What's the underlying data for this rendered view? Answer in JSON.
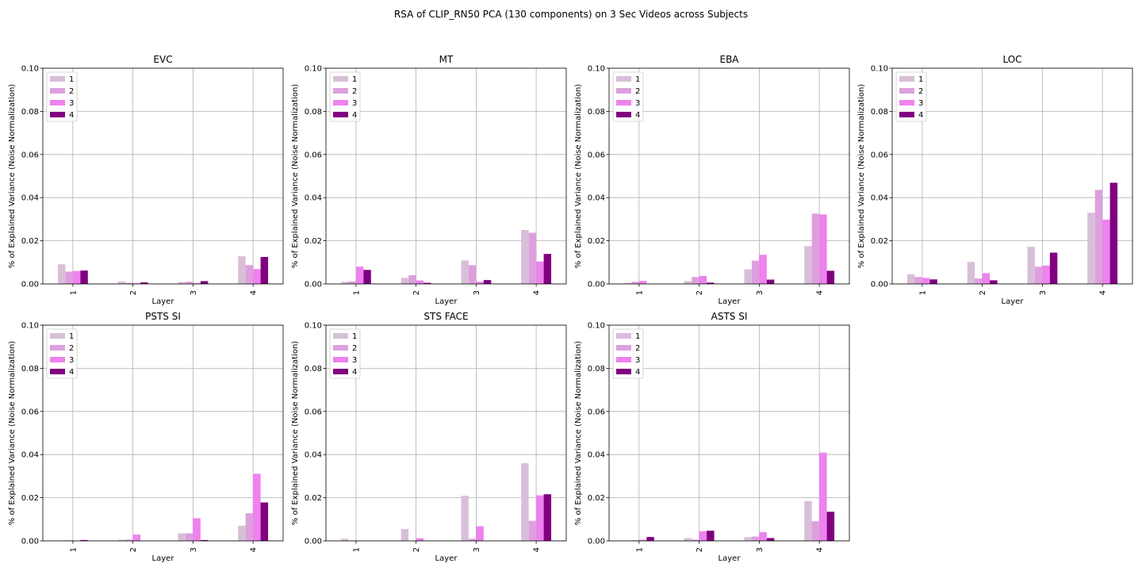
{
  "figure": {
    "title": "RSA of CLIP_RN50 PCA (130 components) on 3 Sec Videos across Subjects"
  },
  "colors": [
    "#d8bfd8",
    "#dda0dd",
    "#ee82ee",
    "#800080"
  ],
  "chart_data": [
    {
      "type": "bar",
      "title": "EVC",
      "xlabel": "Layer",
      "ylabel": "% of Explained Variance (Noise Normalization)",
      "categories": [
        "1",
        "2",
        "3",
        "4"
      ],
      "ylim": [
        0,
        0.1
      ],
      "yticks": [
        "0.00",
        "0.02",
        "0.04",
        "0.06",
        "0.08",
        "0.10"
      ],
      "grid": true,
      "legend": "top-left",
      "series": [
        {
          "name": "1",
          "values": [
            0.0091,
            0.0012,
            0.0009,
            0.0128
          ]
        },
        {
          "name": "2",
          "values": [
            0.0057,
            0.0005,
            0.001,
            0.0087
          ]
        },
        {
          "name": "3",
          "values": [
            0.006,
            0.0003,
            0.0004,
            0.0069
          ]
        },
        {
          "name": "4",
          "values": [
            0.0062,
            0.0007,
            0.0013,
            0.0125
          ]
        }
      ]
    },
    {
      "type": "bar",
      "title": "MT",
      "xlabel": "Layer",
      "ylabel": "% of Explained Variance (Noise Normalization)",
      "categories": [
        "1",
        "2",
        "3",
        "4"
      ],
      "ylim": [
        0,
        0.1
      ],
      "yticks": [
        "0.00",
        "0.02",
        "0.04",
        "0.06",
        "0.08",
        "0.10"
      ],
      "grid": true,
      "legend": "top-left",
      "series": [
        {
          "name": "1",
          "values": [
            0.001,
            0.0028,
            0.0109,
            0.025
          ]
        },
        {
          "name": "2",
          "values": [
            0.0012,
            0.004,
            0.0087,
            0.0237
          ]
        },
        {
          "name": "3",
          "values": [
            0.008,
            0.0016,
            0.001,
            0.0104
          ]
        },
        {
          "name": "4",
          "values": [
            0.0065,
            0.0005,
            0.0018,
            0.0139
          ]
        }
      ]
    },
    {
      "type": "bar",
      "title": "EBA",
      "xlabel": "Layer",
      "ylabel": "% of Explained Variance (Noise Normalization)",
      "categories": [
        "1",
        "2",
        "3",
        "4"
      ],
      "ylim": [
        0,
        0.1
      ],
      "yticks": [
        "0.00",
        "0.02",
        "0.04",
        "0.06",
        "0.08",
        "0.10"
      ],
      "grid": true,
      "legend": "top-left",
      "series": [
        {
          "name": "1",
          "values": [
            0.0005,
            0.0013,
            0.0068,
            0.0175
          ]
        },
        {
          "name": "2",
          "values": [
            0.001,
            0.0032,
            0.0108,
            0.0326
          ]
        },
        {
          "name": "3",
          "values": [
            0.0014,
            0.0037,
            0.0135,
            0.0322
          ]
        },
        {
          "name": "4",
          "values": [
            0.0,
            0.0006,
            0.002,
            0.0061
          ]
        }
      ]
    },
    {
      "type": "bar",
      "title": "LOC",
      "xlabel": "Layer",
      "ylabel": "% of Explained Variance (Noise Normalization)",
      "categories": [
        "1",
        "2",
        "3",
        "4"
      ],
      "ylim": [
        0,
        0.1
      ],
      "yticks": [
        "0.00",
        "0.02",
        "0.04",
        "0.06",
        "0.08",
        "0.10"
      ],
      "grid": true,
      "legend": "top-left",
      "series": [
        {
          "name": "1",
          "values": [
            0.0045,
            0.0102,
            0.0172,
            0.033
          ]
        },
        {
          "name": "2",
          "values": [
            0.0032,
            0.0025,
            0.008,
            0.0436
          ]
        },
        {
          "name": "3",
          "values": [
            0.0028,
            0.005,
            0.0085,
            0.0298
          ]
        },
        {
          "name": "4",
          "values": [
            0.0021,
            0.0017,
            0.0145,
            0.0469
          ]
        }
      ]
    },
    {
      "type": "bar",
      "title": "PSTS SI",
      "xlabel": "Layer",
      "ylabel": "% of Explained Variance (Noise Normalization)",
      "categories": [
        "1",
        "2",
        "3",
        "4"
      ],
      "ylim": [
        0,
        0.1
      ],
      "yticks": [
        "0.00",
        "0.02",
        "0.04",
        "0.06",
        "0.08",
        "0.10"
      ],
      "grid": true,
      "legend": "top-left",
      "series": [
        {
          "name": "1",
          "values": [
            0.0002,
            0.0005,
            0.0035,
            0.007
          ]
        },
        {
          "name": "2",
          "values": [
            0.0003,
            0.0006,
            0.0035,
            0.0128
          ]
        },
        {
          "name": "3",
          "values": [
            0.0001,
            0.0029,
            0.0105,
            0.0311
          ]
        },
        {
          "name": "4",
          "values": [
            0.0004,
            0.0,
            0.0004,
            0.0178
          ]
        }
      ]
    },
    {
      "type": "bar",
      "title": "STS FACE",
      "xlabel": "Layer",
      "ylabel": "% of Explained Variance (Noise Normalization)",
      "categories": [
        "1",
        "2",
        "3",
        "4"
      ],
      "ylim": [
        0,
        0.1
      ],
      "yticks": [
        "0.00",
        "0.02",
        "0.04",
        "0.06",
        "0.08",
        "0.10"
      ],
      "grid": true,
      "legend": "top-left",
      "series": [
        {
          "name": "1",
          "values": [
            0.001,
            0.0055,
            0.0209,
            0.036
          ]
        },
        {
          "name": "2",
          "values": [
            0.0,
            0.0,
            0.001,
            0.0093
          ]
        },
        {
          "name": "3",
          "values": [
            0.0002,
            0.0012,
            0.0068,
            0.0211
          ]
        },
        {
          "name": "4",
          "values": [
            0.0,
            0.0,
            0.0,
            0.0216
          ]
        }
      ]
    },
    {
      "type": "bar",
      "title": "ASTS SI",
      "xlabel": "Layer",
      "ylabel": "% of Explained Variance (Noise Normalization)",
      "categories": [
        "1",
        "2",
        "3",
        "4"
      ],
      "ylim": [
        0,
        0.1
      ],
      "yticks": [
        "0.00",
        "0.02",
        "0.04",
        "0.06",
        "0.08",
        "0.10"
      ],
      "grid": true,
      "legend": "top-left",
      "series": [
        {
          "name": "1",
          "values": [
            0.0002,
            0.0013,
            0.0017,
            0.0184
          ]
        },
        {
          "name": "2",
          "values": [
            0.0003,
            0.0006,
            0.002,
            0.0091
          ]
        },
        {
          "name": "3",
          "values": [
            0.0005,
            0.0044,
            0.004,
            0.0409
          ]
        },
        {
          "name": "4",
          "values": [
            0.0018,
            0.0047,
            0.0013,
            0.0135
          ]
        }
      ]
    }
  ]
}
